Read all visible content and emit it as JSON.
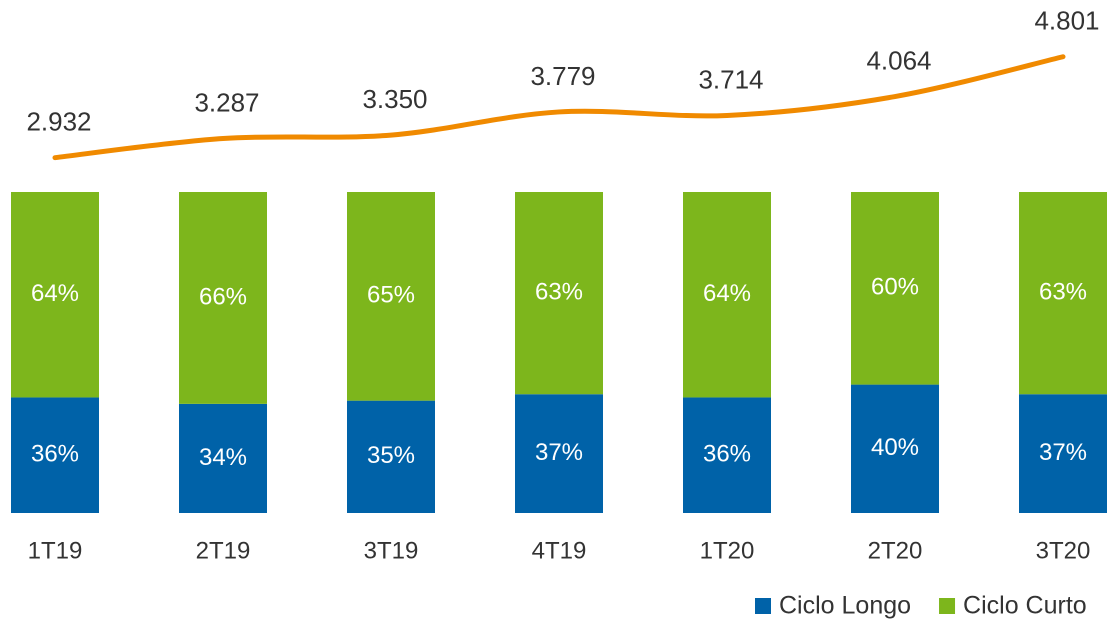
{
  "chart_data": {
    "type": "bar",
    "stacked": true,
    "categories": [
      "1T19",
      "2T19",
      "3T19",
      "4T19",
      "1T20",
      "2T20",
      "3T20"
    ],
    "series": [
      {
        "name": "Ciclo Longo",
        "color": "#0062a8",
        "values": [
          36,
          34,
          35,
          37,
          36,
          40,
          37
        ],
        "value_labels": [
          "36%",
          "34%",
          "35%",
          "37%",
          "36%",
          "40%",
          "37%"
        ]
      },
      {
        "name": "Ciclo Curto",
        "color": "#7db61c",
        "values": [
          64,
          66,
          65,
          63,
          64,
          60,
          63
        ],
        "value_labels": [
          "64%",
          "66%",
          "65%",
          "63%",
          "64%",
          "60%",
          "63%"
        ]
      },
      {
        "type": "line",
        "axis": "y2",
        "color": "#f08a00",
        "values": [
          2932,
          3287,
          3350,
          3779,
          3714,
          4064,
          4801
        ],
        "value_labels": [
          "2.932",
          "3.287",
          "3.350",
          "3.779",
          "3.714",
          "4.064",
          "4.801"
        ]
      }
    ],
    "ylim": [
      0,
      100
    ],
    "y2lim": [
      0,
      6000
    ],
    "legend": "bottom-right"
  }
}
